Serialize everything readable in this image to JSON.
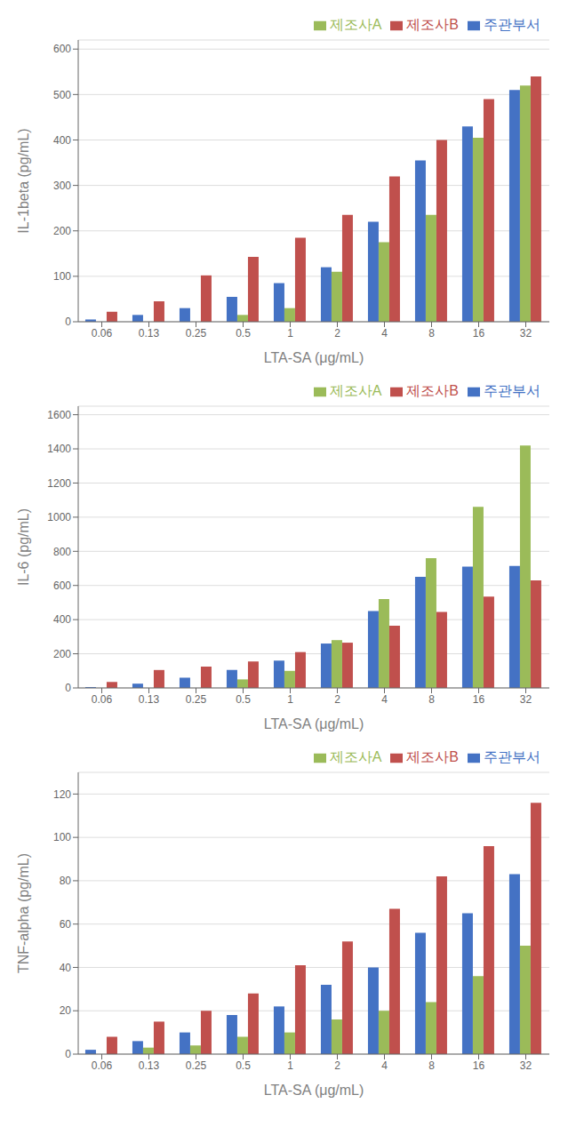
{
  "chart_data": [
    {
      "type": "bar",
      "categories": [
        "0.06",
        "0.13",
        "0.25",
        "0.5",
        "1",
        "2",
        "4",
        "8",
        "16",
        "32"
      ],
      "series": [
        {
          "name": "주관부서",
          "color": "#4472C4",
          "values": [
            5,
            15,
            30,
            55,
            85,
            120,
            220,
            355,
            430,
            510
          ]
        },
        {
          "name": "제조사A",
          "color": "#9BBB59",
          "values": [
            0,
            0,
            0,
            15,
            30,
            110,
            175,
            235,
            405,
            520
          ]
        },
        {
          "name": "제조사B",
          "color": "#C0504D",
          "values": [
            22,
            45,
            102,
            143,
            185,
            235,
            320,
            400,
            490,
            540
          ]
        }
      ],
      "xlabel": "LTA-SA (μg/mL)",
      "ylabel": "IL-1beta (pg/mL)",
      "ylim": [
        0,
        620
      ],
      "yticks": [
        0,
        100,
        200,
        300,
        400,
        500,
        600
      ],
      "grid": "y",
      "legend": "upper right"
    },
    {
      "type": "bar",
      "categories": [
        "0.06",
        "0.13",
        "0.25",
        "0.5",
        "1",
        "2",
        "4",
        "8",
        "16",
        "32"
      ],
      "series": [
        {
          "name": "주관부서",
          "color": "#4472C4",
          "values": [
            5,
            25,
            60,
            105,
            160,
            260,
            450,
            650,
            710,
            715
          ]
        },
        {
          "name": "제조사A",
          "color": "#9BBB59",
          "values": [
            0,
            0,
            0,
            50,
            100,
            280,
            520,
            760,
            1060,
            1420
          ]
        },
        {
          "name": "제조사B",
          "color": "#C0504D",
          "values": [
            35,
            105,
            125,
            155,
            210,
            265,
            365,
            445,
            535,
            630
          ]
        }
      ],
      "xlabel": "LTA-SA (μg/mL)",
      "ylabel": "IL-6 (pg/mL)",
      "ylim": [
        0,
        1650
      ],
      "yticks": [
        0,
        200,
        400,
        600,
        800,
        1000,
        1200,
        1400,
        1600
      ],
      "grid": "y",
      "legend": "upper right"
    },
    {
      "type": "bar",
      "categories": [
        "0.06",
        "0.13",
        "0.25",
        "0.5",
        "1",
        "2",
        "4",
        "8",
        "16",
        "32"
      ],
      "series": [
        {
          "name": "주관부서",
          "color": "#4472C4",
          "values": [
            2,
            6,
            10,
            18,
            22,
            32,
            40,
            56,
            65,
            83
          ]
        },
        {
          "name": "제조사A",
          "color": "#9BBB59",
          "values": [
            0,
            3,
            4,
            8,
            10,
            16,
            20,
            24,
            36,
            50
          ]
        },
        {
          "name": "제조사B",
          "color": "#C0504D",
          "values": [
            8,
            15,
            20,
            28,
            41,
            52,
            67,
            82,
            96,
            116
          ]
        }
      ],
      "xlabel": "LTA-SA (μg/mL)",
      "ylabel": "TNF-alpha (pg/mL)",
      "ylim": [
        0,
        130
      ],
      "yticks": [
        0,
        20,
        40,
        60,
        80,
        100,
        120
      ],
      "grid": "y",
      "legend": "upper right"
    }
  ]
}
